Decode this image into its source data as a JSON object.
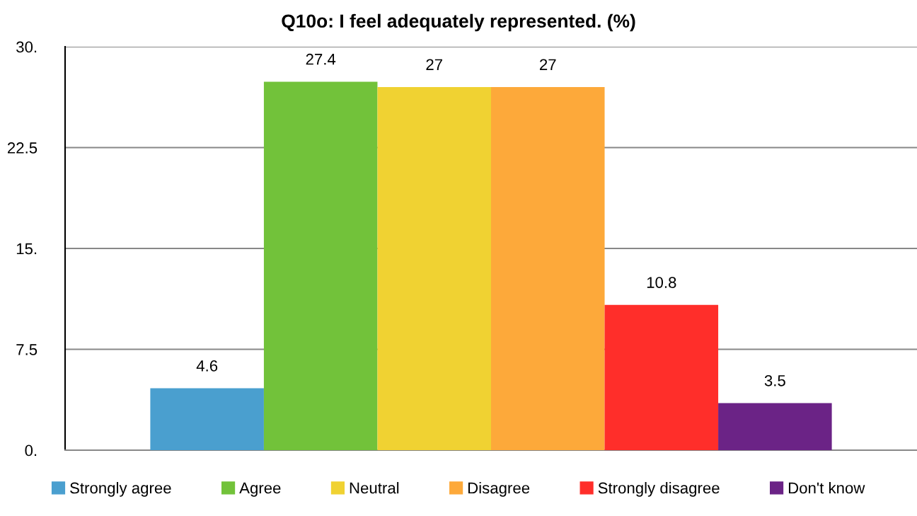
{
  "chart_data": {
    "type": "bar",
    "title": "Q10o: I feel adequately represented. (%)",
    "categories": [
      null
    ],
    "series": [
      {
        "name": "Strongly agree",
        "color": "#4a9fcf",
        "values": [
          4.6
        ]
      },
      {
        "name": "Agree",
        "color": "#72c23a",
        "values": [
          27.4
        ]
      },
      {
        "name": "Neutral",
        "color": "#f0d232",
        "values": [
          27
        ]
      },
      {
        "name": "Disagree",
        "color": "#fda93a",
        "values": [
          27
        ]
      },
      {
        "name": "Strongly disagree",
        "color": "#ff2e2a",
        "values": [
          10.8
        ]
      },
      {
        "name": "Don't know",
        "color": "#6b2386",
        "values": [
          3.5
        ]
      }
    ],
    "ylim": [
      0,
      30
    ],
    "yticks": [
      {
        "value": 0,
        "label": "0."
      },
      {
        "value": 7.5,
        "label": "7.5"
      },
      {
        "value": 15,
        "label": "15."
      },
      {
        "value": 22.5,
        "label": "22.5"
      },
      {
        "value": 30,
        "label": "30."
      }
    ],
    "grid": "y",
    "legend": "bottom",
    "data_labels": true
  }
}
